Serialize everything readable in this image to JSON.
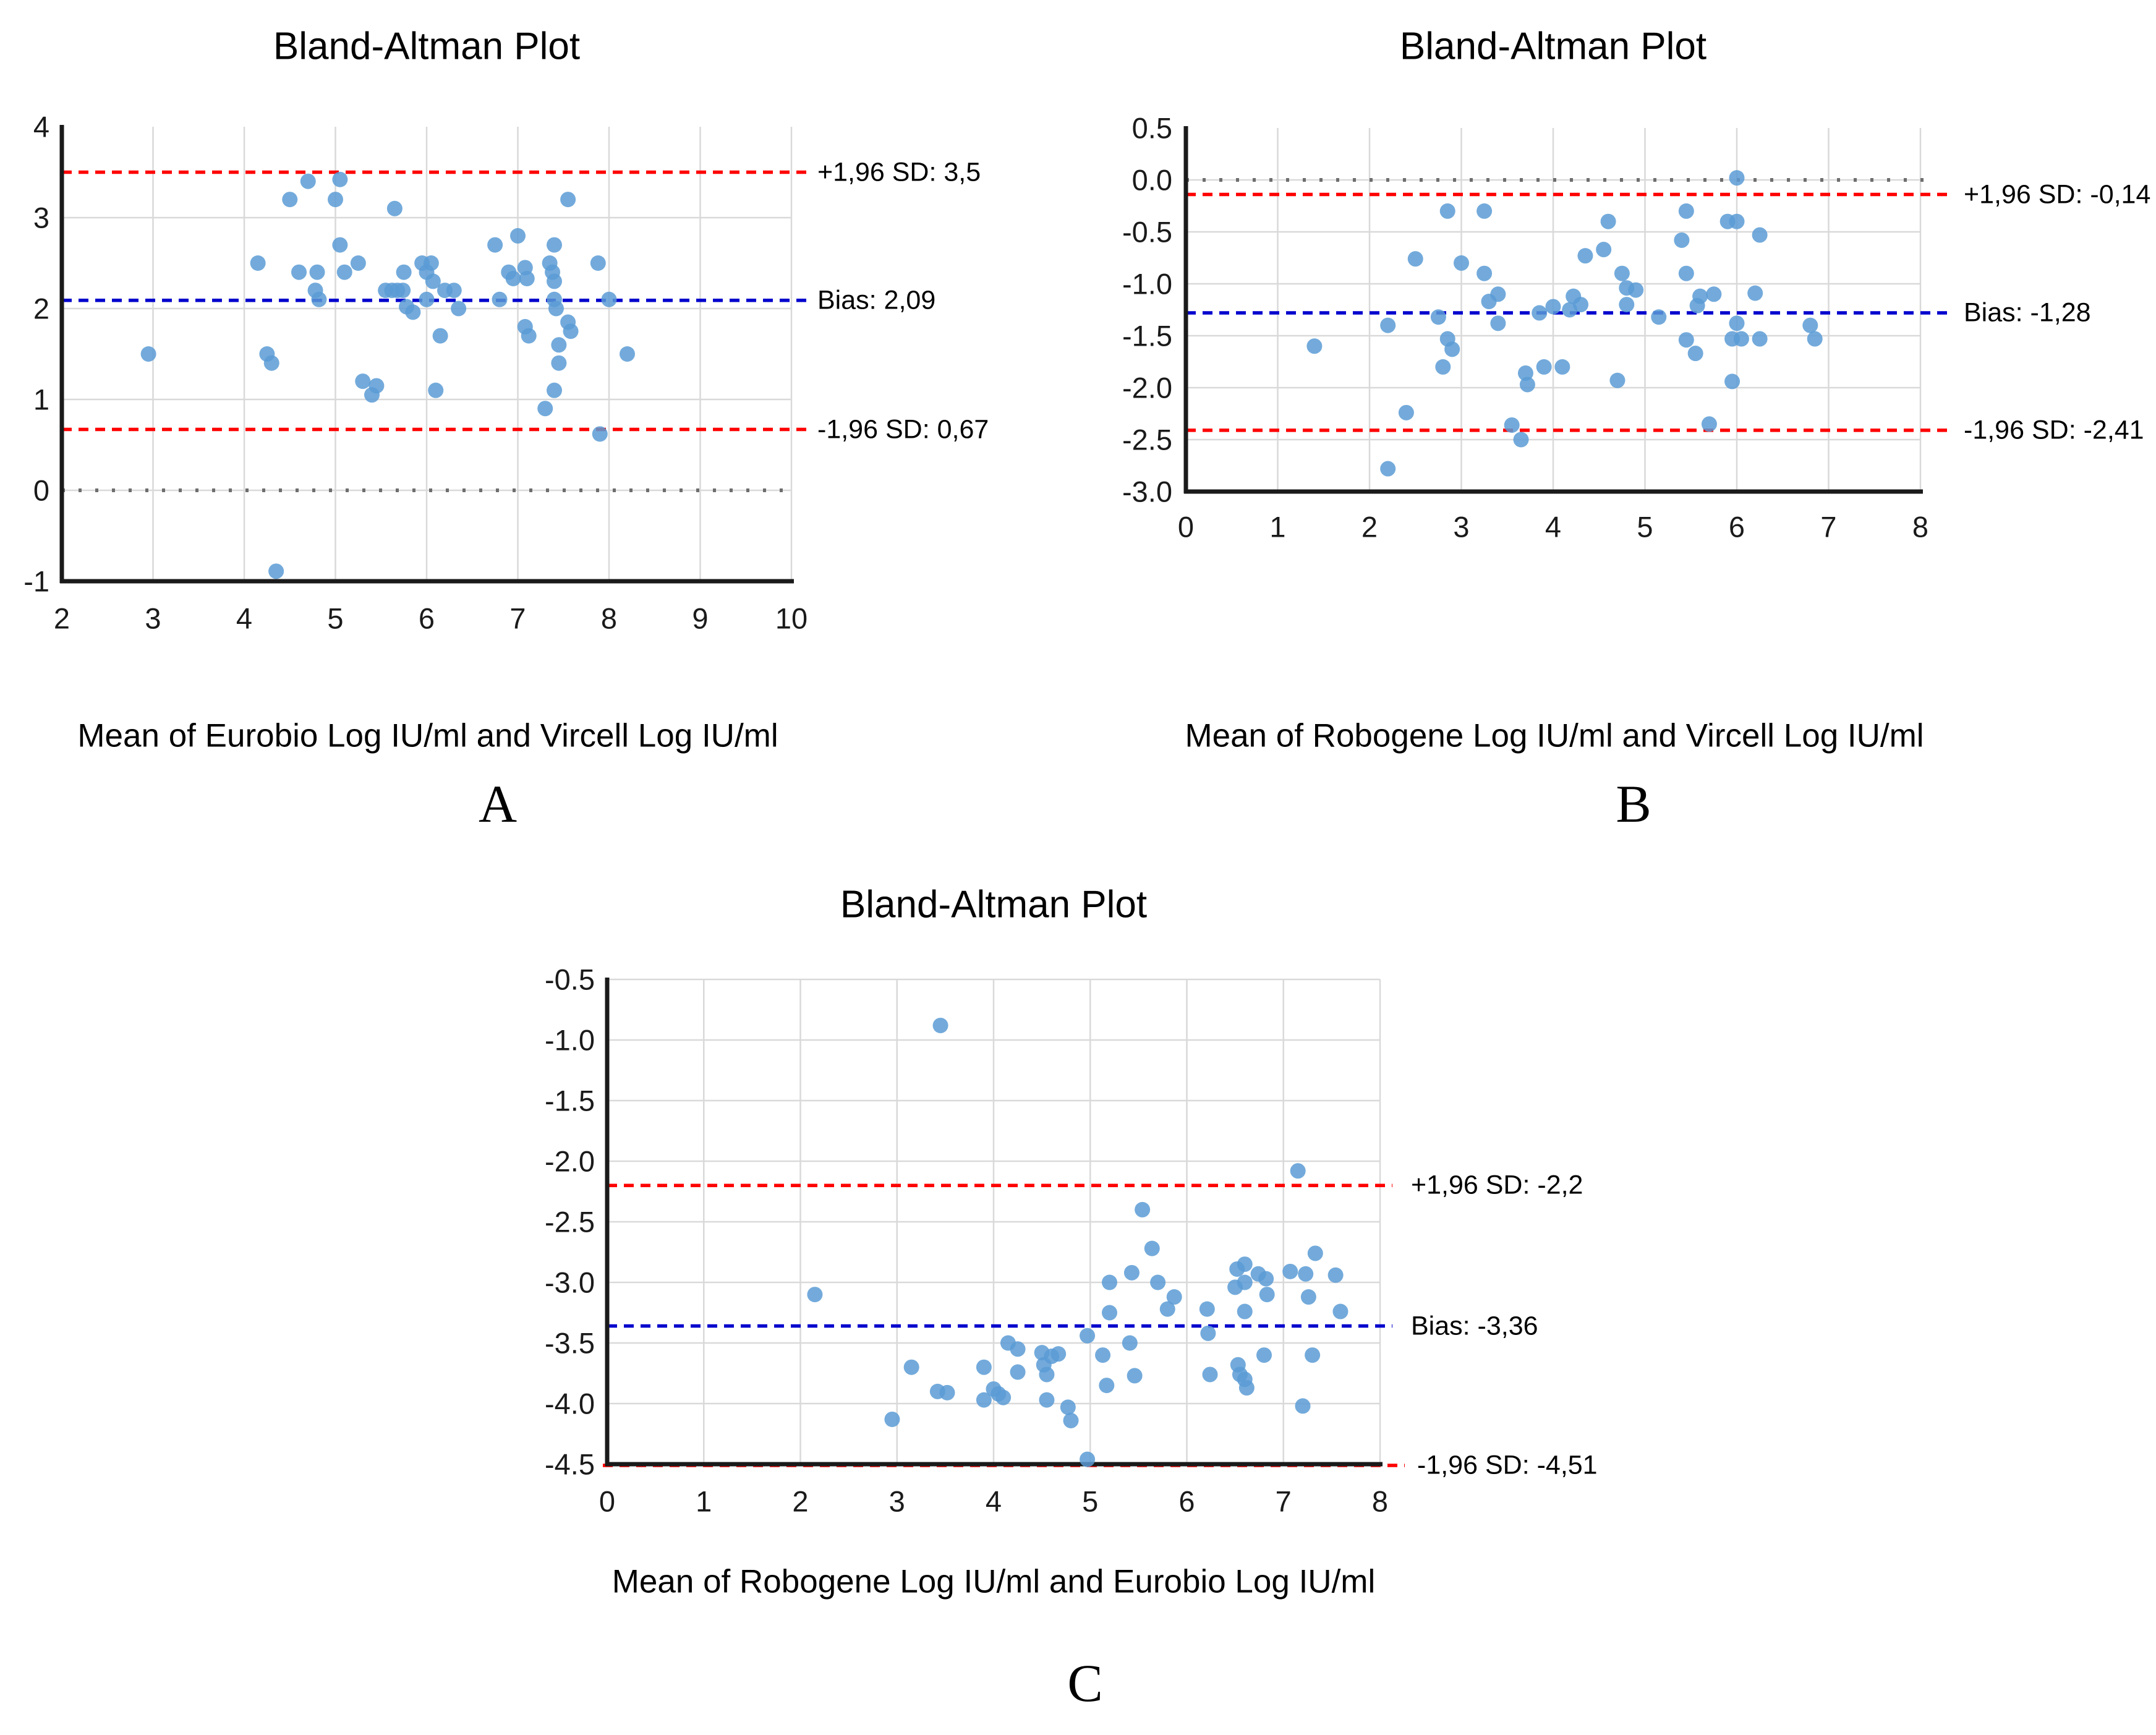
{
  "figure": {
    "background": "#ffffff",
    "panel_letters": [
      "A",
      "B",
      "C"
    ]
  },
  "colors": {
    "marker": "#5B9BD5",
    "loa_line": "#FF0000",
    "bias_line": "#0000CD",
    "zero_line": "#6E6E6E",
    "gridline": "#D9D9D9",
    "axis": "#1A1A1A",
    "tick_text": "#1A1A1A",
    "text": "#000000"
  },
  "chart_data": [
    {
      "id": "A",
      "type": "scatter",
      "title": "Bland-Altman Plot",
      "xlabel": "Mean of Eurobio Log IU/ml and Vircell Log IU/ml",
      "panel_letter": "A",
      "xlim": [
        2,
        10
      ],
      "ylim": [
        -1,
        4
      ],
      "x_ticks": [
        2,
        3,
        4,
        5,
        6,
        7,
        8,
        9,
        10
      ],
      "y_ticks": [
        "4",
        "3",
        "2",
        "1",
        "0",
        "-1"
      ],
      "grid": true,
      "legend": "none",
      "zero_line": 0,
      "lines": {
        "upper": {
          "value": 3.5,
          "label": "+1,96 SD: 3,5"
        },
        "bias": {
          "value": 2.09,
          "label": "Bias: 2,09"
        },
        "lower": {
          "value": 0.67,
          "label": "-1,96 SD: 0,67"
        }
      },
      "points": [
        [
          2.95,
          1.5
        ],
        [
          4.15,
          2.5
        ],
        [
          4.25,
          1.5
        ],
        [
          4.3,
          1.4
        ],
        [
          4.35,
          -0.89
        ],
        [
          4.5,
          3.2
        ],
        [
          4.6,
          2.4
        ],
        [
          4.7,
          3.4
        ],
        [
          4.78,
          2.2
        ],
        [
          4.8,
          2.4
        ],
        [
          4.82,
          2.1
        ],
        [
          5.0,
          3.2
        ],
        [
          5.05,
          3.42
        ],
        [
          5.05,
          2.7
        ],
        [
          5.1,
          2.4
        ],
        [
          5.25,
          2.5
        ],
        [
          5.3,
          1.2
        ],
        [
          5.4,
          1.05
        ],
        [
          5.45,
          1.15
        ],
        [
          5.55,
          2.2
        ],
        [
          5.62,
          2.2
        ],
        [
          5.65,
          3.1
        ],
        [
          5.68,
          2.2
        ],
        [
          5.74,
          2.2
        ],
        [
          5.75,
          2.4
        ],
        [
          5.78,
          2.02
        ],
        [
          5.85,
          1.96
        ],
        [
          5.95,
          2.5
        ],
        [
          6.0,
          2.4
        ],
        [
          6.0,
          2.1
        ],
        [
          6.05,
          2.5
        ],
        [
          6.07,
          2.3
        ],
        [
          6.1,
          1.1
        ],
        [
          6.15,
          1.7
        ],
        [
          6.2,
          2.2
        ],
        [
          6.3,
          2.2
        ],
        [
          6.35,
          2.0
        ],
        [
          6.75,
          2.7
        ],
        [
          6.8,
          2.1
        ],
        [
          6.9,
          2.4
        ],
        [
          6.95,
          2.33
        ],
        [
          7.0,
          2.8
        ],
        [
          7.08,
          2.45
        ],
        [
          7.1,
          2.33
        ],
        [
          7.08,
          1.8
        ],
        [
          7.12,
          1.7
        ],
        [
          7.3,
          0.9
        ],
        [
          7.35,
          2.5
        ],
        [
          7.38,
          2.4
        ],
        [
          7.4,
          2.3
        ],
        [
          7.4,
          2.7
        ],
        [
          7.4,
          2.1
        ],
        [
          7.42,
          2.0
        ],
        [
          7.4,
          1.1
        ],
        [
          7.45,
          1.6
        ],
        [
          7.45,
          1.4
        ],
        [
          7.55,
          3.2
        ],
        [
          7.55,
          1.85
        ],
        [
          7.58,
          1.75
        ],
        [
          7.88,
          2.5
        ],
        [
          7.9,
          0.62
        ],
        [
          8.0,
          2.1
        ],
        [
          8.2,
          1.5
        ]
      ]
    },
    {
      "id": "B",
      "type": "scatter",
      "title": "Bland-Altman Plot",
      "xlabel": "Mean of Robogene Log IU/ml and Vircell Log IU/ml",
      "panel_letter": "B",
      "xlim": [
        0,
        8
      ],
      "ylim": [
        -3.0,
        0.5
      ],
      "x_ticks": [
        0,
        1,
        2,
        3,
        4,
        5,
        6,
        7,
        8
      ],
      "y_ticks": [
        "0.5",
        "0.0",
        "-0.5",
        "-1.0",
        "-1.5",
        "-2.0",
        "-2.5",
        "-3.0"
      ],
      "grid": true,
      "legend": "none",
      "zero_line": 0,
      "lines": {
        "upper": {
          "value": -0.14,
          "label": "+1,96 SD: -0,14"
        },
        "bias": {
          "value": -1.28,
          "label": "Bias: -1,28"
        },
        "lower": {
          "value": -2.41,
          "label": "-1,96 SD: -2,41"
        }
      },
      "points": [
        [
          1.4,
          -1.6
        ],
        [
          2.2,
          -1.4
        ],
        [
          2.2,
          -2.78
        ],
        [
          2.4,
          -2.24
        ],
        [
          2.5,
          -0.76
        ],
        [
          2.75,
          -1.32
        ],
        [
          2.8,
          -1.8
        ],
        [
          2.85,
          -0.3
        ],
        [
          2.85,
          -1.53
        ],
        [
          2.9,
          -1.63
        ],
        [
          3.0,
          -0.8
        ],
        [
          3.25,
          -0.3
        ],
        [
          3.25,
          -0.9
        ],
        [
          3.3,
          -1.17
        ],
        [
          3.4,
          -1.1
        ],
        [
          3.4,
          -1.38
        ],
        [
          3.55,
          -2.36
        ],
        [
          3.65,
          -2.5
        ],
        [
          3.7,
          -1.86
        ],
        [
          3.72,
          -1.97
        ],
        [
          3.85,
          -1.28
        ],
        [
          3.9,
          -1.8
        ],
        [
          4.0,
          -1.22
        ],
        [
          4.1,
          -1.8
        ],
        [
          4.18,
          -1.25
        ],
        [
          4.22,
          -1.12
        ],
        [
          4.3,
          -1.2
        ],
        [
          4.35,
          -0.73
        ],
        [
          4.55,
          -0.67
        ],
        [
          4.6,
          -0.4
        ],
        [
          4.7,
          -1.93
        ],
        [
          4.75,
          -0.9
        ],
        [
          4.8,
          -1.04
        ],
        [
          4.8,
          -1.2
        ],
        [
          4.9,
          -1.06
        ],
        [
          5.15,
          -1.32
        ],
        [
          5.4,
          -0.58
        ],
        [
          5.45,
          -0.3
        ],
        [
          5.45,
          -0.9
        ],
        [
          5.45,
          -1.54
        ],
        [
          5.55,
          -1.67
        ],
        [
          5.57,
          -1.21
        ],
        [
          5.6,
          -1.12
        ],
        [
          5.7,
          -2.35
        ],
        [
          5.75,
          -1.1
        ],
        [
          5.9,
          -0.4
        ],
        [
          5.95,
          -1.53
        ],
        [
          5.95,
          -1.94
        ],
        [
          6.0,
          0.02
        ],
        [
          6.0,
          -0.4
        ],
        [
          6.0,
          -1.38
        ],
        [
          6.05,
          -1.53
        ],
        [
          6.2,
          -1.09
        ],
        [
          6.25,
          -0.53
        ],
        [
          6.25,
          -1.53
        ],
        [
          6.8,
          -1.4
        ],
        [
          6.85,
          -1.53
        ]
      ]
    },
    {
      "id": "C",
      "type": "scatter",
      "title": "Bland-Altman Plot",
      "xlabel": "Mean of Robogene Log IU/ml and Eurobio Log IU/ml",
      "panel_letter": "C",
      "xlim": [
        0,
        8
      ],
      "ylim": [
        -4.5,
        -0.5
      ],
      "x_ticks": [
        0,
        1,
        2,
        3,
        4,
        5,
        6,
        7,
        8
      ],
      "y_ticks": [
        "-0.5",
        "-1.0",
        "-1.5",
        "-2.0",
        "-2.5",
        "-3.0",
        "-3.5",
        "-4.0",
        "-4.5"
      ],
      "grid": true,
      "legend": "none",
      "lines": {
        "upper": {
          "value": -2.2,
          "label": "+1,96 SD: -2,2"
        },
        "bias": {
          "value": -3.36,
          "label": "Bias: -3,36"
        },
        "lower": {
          "value": -4.51,
          "label": "-1,96 SD: -4,51"
        }
      },
      "points": [
        [
          2.15,
          -3.1
        ],
        [
          2.95,
          -4.13
        ],
        [
          3.15,
          -3.7
        ],
        [
          3.45,
          -0.88
        ],
        [
          3.42,
          -3.9
        ],
        [
          3.52,
          -3.91
        ],
        [
          3.9,
          -3.7
        ],
        [
          3.9,
          -3.97
        ],
        [
          4.0,
          -3.88
        ],
        [
          4.05,
          -3.92
        ],
        [
          4.1,
          -3.95
        ],
        [
          4.15,
          -3.5
        ],
        [
          4.25,
          -3.55
        ],
        [
          4.25,
          -3.74
        ],
        [
          4.5,
          -3.58
        ],
        [
          4.52,
          -3.68
        ],
        [
          4.55,
          -3.76
        ],
        [
          4.55,
          -3.97
        ],
        [
          4.6,
          -3.61
        ],
        [
          4.67,
          -3.59
        ],
        [
          4.77,
          -4.03
        ],
        [
          4.8,
          -4.14
        ],
        [
          4.97,
          -3.44
        ],
        [
          4.97,
          -4.46
        ],
        [
          5.13,
          -3.6
        ],
        [
          5.17,
          -3.85
        ],
        [
          5.2,
          -3.0
        ],
        [
          5.2,
          -3.25
        ],
        [
          5.41,
          -3.5
        ],
        [
          5.43,
          -2.92
        ],
        [
          5.46,
          -3.77
        ],
        [
          5.54,
          -2.4
        ],
        [
          5.64,
          -2.72
        ],
        [
          5.7,
          -3.0
        ],
        [
          5.8,
          -3.22
        ],
        [
          5.87,
          -3.12
        ],
        [
          6.21,
          -3.22
        ],
        [
          6.22,
          -3.42
        ],
        [
          6.24,
          -3.76
        ],
        [
          6.5,
          -3.04
        ],
        [
          6.52,
          -2.89
        ],
        [
          6.6,
          -2.85
        ],
        [
          6.6,
          -3.0
        ],
        [
          6.6,
          -3.24
        ],
        [
          6.53,
          -3.68
        ],
        [
          6.55,
          -3.76
        ],
        [
          6.6,
          -3.8
        ],
        [
          6.62,
          -3.87
        ],
        [
          6.74,
          -2.93
        ],
        [
          6.8,
          -3.6
        ],
        [
          6.82,
          -2.97
        ],
        [
          6.83,
          -3.1
        ],
        [
          7.07,
          -2.91
        ],
        [
          7.15,
          -2.08
        ],
        [
          7.2,
          -4.02
        ],
        [
          7.23,
          -2.93
        ],
        [
          7.26,
          -3.12
        ],
        [
          7.3,
          -3.6
        ],
        [
          7.33,
          -2.76
        ],
        [
          7.54,
          -2.94
        ],
        [
          7.59,
          -3.24
        ]
      ]
    }
  ]
}
